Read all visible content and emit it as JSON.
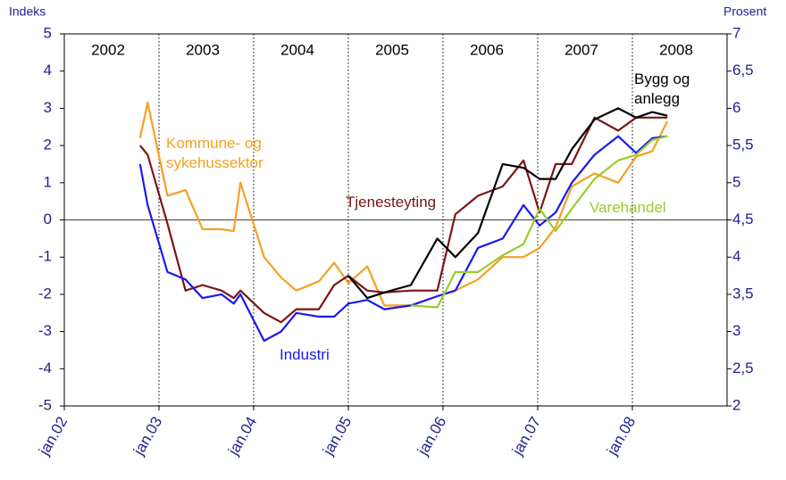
{
  "chart_data": {
    "type": "line",
    "y_label": "Indeks",
    "y2_label": "Prosent",
    "x": [
      2002.8,
      2002.88,
      2003.09,
      2003.28,
      2003.46,
      2003.66,
      2003.79,
      2003.86,
      2004.11,
      2004.29,
      2004.45,
      2004.69,
      2004.85,
      2005.0,
      2005.2,
      2005.38,
      2005.66,
      2005.94,
      2006.13,
      2006.37,
      2006.63,
      2006.85,
      2007.02,
      2007.19,
      2007.36,
      2007.6,
      2007.85,
      2008.04,
      2008.21,
      2008.37
    ],
    "series": [
      {
        "name": "Kommune- og sykehussektor",
        "color": "#f5a020",
        "values": [
          2.2,
          3.15,
          0.65,
          0.8,
          -0.25,
          -0.25,
          -0.3,
          1.0,
          -1.0,
          -1.55,
          -1.9,
          -1.65,
          -1.15,
          -1.7,
          -1.25,
          -2.3,
          -2.3,
          -2.05,
          -1.9,
          -1.6,
          -1.0,
          -1.0,
          -0.75,
          -0.2,
          0.9,
          1.25,
          1.0,
          1.7,
          1.85,
          2.65
        ]
      },
      {
        "name": "Tjenesteyting",
        "color": "#7b1414",
        "values": [
          2.0,
          1.75,
          -0.1,
          -1.9,
          -1.75,
          -1.9,
          -2.1,
          -1.9,
          -2.5,
          -2.75,
          -2.4,
          -2.4,
          -1.75,
          -1.5,
          -1.9,
          -1.95,
          -1.9,
          -1.9,
          0.15,
          0.65,
          0.9,
          1.6,
          0.2,
          1.5,
          1.5,
          2.75,
          2.4,
          2.75,
          2.75,
          2.75
        ]
      },
      {
        "name": "Bygg og anlegg",
        "color": "#000000",
        "values": [
          null,
          null,
          null,
          null,
          null,
          null,
          null,
          null,
          null,
          null,
          null,
          null,
          null,
          -1.5,
          -2.1,
          -1.95,
          -1.75,
          -0.5,
          -1.0,
          -0.35,
          1.5,
          1.4,
          1.1,
          1.1,
          1.9,
          2.7,
          3.0,
          2.75,
          2.9,
          2.8
        ]
      },
      {
        "name": "Industri",
        "color": "#1a1aee",
        "values": [
          1.5,
          0.4,
          -1.4,
          -1.6,
          -2.1,
          -2.0,
          -2.25,
          -2.0,
          -3.25,
          -3.0,
          -2.5,
          -2.6,
          -2.6,
          -2.25,
          -2.15,
          -2.4,
          -2.3,
          -2.05,
          -1.9,
          -0.75,
          -0.5,
          0.4,
          -0.15,
          0.2,
          1.0,
          1.75,
          2.25,
          1.8,
          2.2,
          2.25
        ]
      },
      {
        "name": "Varehandel",
        "color": "#9acc2a",
        "values": [
          null,
          null,
          null,
          null,
          null,
          null,
          null,
          null,
          null,
          null,
          null,
          null,
          null,
          null,
          null,
          null,
          -2.3,
          -2.35,
          -1.4,
          -1.4,
          -0.95,
          -0.65,
          0.3,
          -0.3,
          0.3,
          1.1,
          1.6,
          1.75,
          2.15,
          2.25
        ]
      }
    ],
    "period_labels": [
      "2002",
      "2003",
      "2004",
      "2005",
      "2006",
      "2007",
      "2008"
    ],
    "xlim": [
      2002,
      2009
    ],
    "xticks": [
      {
        "value": 2002,
        "label": "jan.02"
      },
      {
        "value": 2003,
        "label": "jan.03"
      },
      {
        "value": 2004,
        "label": "jan.04"
      },
      {
        "value": 2005,
        "label": "jan.05"
      },
      {
        "value": 2006,
        "label": "jan.06"
      },
      {
        "value": 2007,
        "label": "jan.07"
      },
      {
        "value": 2008,
        "label": "jan.08"
      }
    ],
    "ylim": [
      -5,
      5
    ],
    "yticks": [
      -5,
      -4,
      -3,
      -2,
      -1,
      0,
      1,
      2,
      3,
      4,
      5
    ],
    "y2lim": [
      2,
      7
    ],
    "y2ticks": [
      2,
      {
        "value": 2.5,
        "label": "2,5"
      },
      3,
      {
        "value": 3.5,
        "label": "3,5"
      },
      4,
      {
        "value": 4.5,
        "label": "4,5"
      },
      5,
      {
        "value": 5.5,
        "label": "5,5"
      },
      6,
      {
        "value": 6.5,
        "label": "6,5"
      },
      7
    ]
  }
}
